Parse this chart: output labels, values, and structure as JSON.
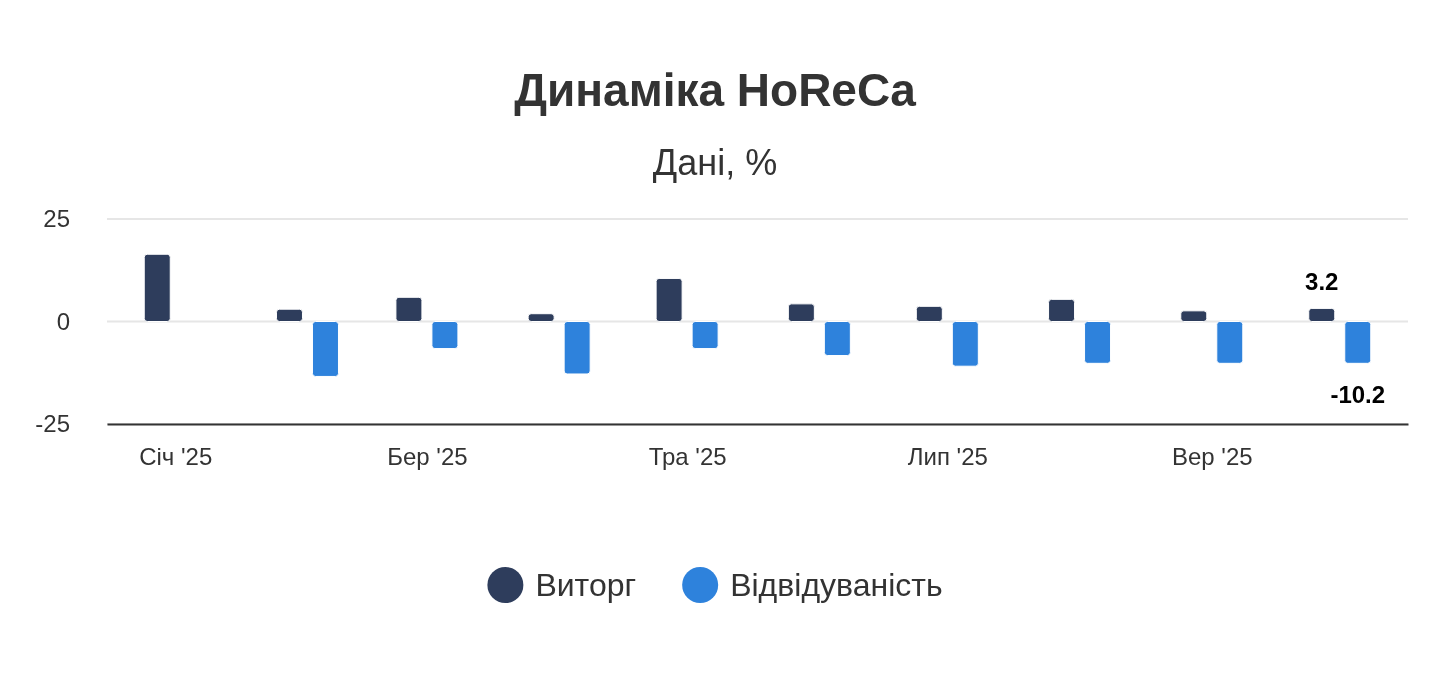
{
  "chart_data": {
    "type": "bar",
    "title": "Динаміка HoReCa",
    "subtitle": "Дані, %",
    "x": [
      "2025-01",
      "2025-02",
      "2025-03",
      "2025-04",
      "2025-05",
      "2025-06",
      "2025-07",
      "2025-08",
      "2025-09",
      "2025-10"
    ],
    "xlim": [
      "2024-12-16",
      "2025-10-17"
    ],
    "xticks": [
      {
        "value": "2025-01",
        "label": "Січ '25"
      },
      {
        "value": "2025-03",
        "label": "Бер '25"
      },
      {
        "value": "2025-05",
        "label": "Тра '25"
      },
      {
        "value": "2025-07",
        "label": "Лип '25"
      },
      {
        "value": "2025-09",
        "label": "Вер '25"
      }
    ],
    "ylim": [
      -25,
      25
    ],
    "yticks": [
      -25,
      0,
      25
    ],
    "grid": "y",
    "legend": "bottom",
    "series": [
      {
        "name": "Виторг",
        "color": "#2e3d5c",
        "values": [
          16.4,
          3.0,
          5.9,
          1.9,
          10.5,
          4.3,
          3.7,
          5.4,
          2.6,
          3.2
        ],
        "value_labels": [
          null,
          null,
          null,
          null,
          null,
          null,
          null,
          null,
          null,
          "3.2"
        ]
      },
      {
        "name": "Відвідуваність",
        "color": "#2e82dc",
        "values": [
          null,
          -13.4,
          -6.6,
          -12.8,
          -6.6,
          -8.3,
          -10.9,
          -10.2,
          -10.2,
          -10.2
        ],
        "value_labels": [
          null,
          null,
          null,
          null,
          null,
          null,
          null,
          null,
          null,
          "-10.2"
        ]
      }
    ]
  }
}
